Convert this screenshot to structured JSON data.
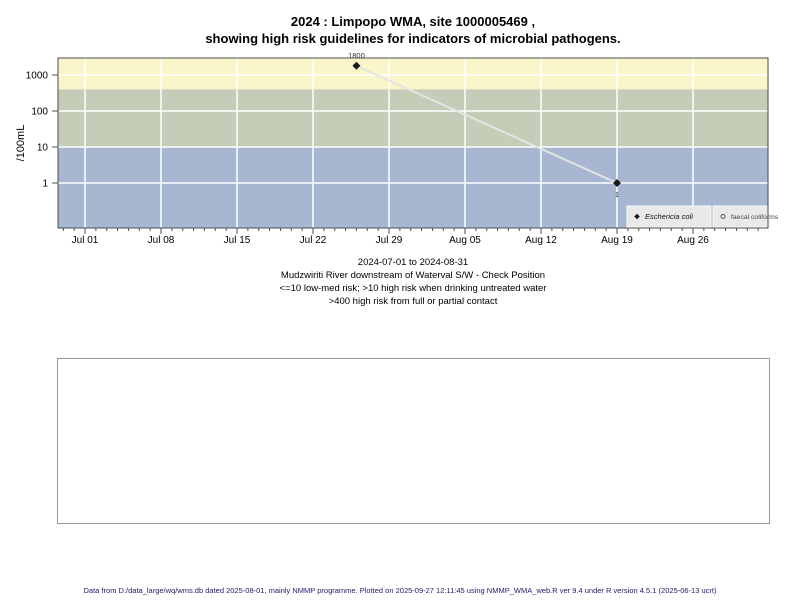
{
  "title": {
    "line1": "2024 : Limpopo WMA, site 1000005469 ,",
    "line2": "showing high risk guidelines for indicators of microbial pathogens."
  },
  "subtitle": {
    "line1": "2024-07-01 to 2024-08-31",
    "line2": "Mudzwiriti River downstream of Waterval S/W - Check Position",
    "line3": "<=10 low-med risk; >10 high risk when drinking untreated water",
    "line4": ">400 high risk from full or partial contact"
  },
  "footer": {
    "text": "Data from D:/data_large/wq/wms.db dated 2025-08-01, mainly NMMP programme. Plotted on 2025-09-27 12:11:45 using NMMP_WMA_web.R ver 9.4 under R version 4.5.1 (2025-06-13 ucrt)"
  },
  "chart_data": {
    "type": "line",
    "title": "2024 : Limpopo WMA, site 1000005469 , showing high risk guidelines for indicators of microbial pathogens.",
    "ylabel": "/100mL",
    "xlabel": "",
    "y_scale": "log10",
    "y_ticks": [
      1,
      10,
      100,
      1000
    ],
    "ylim": [
      0.056,
      3000
    ],
    "x_range": [
      "2024-07-01",
      "2024-08-31"
    ],
    "x_tick_labels": [
      "Jul 01",
      "Jul 08",
      "Jul 15",
      "Jul 22",
      "Jul 29",
      "Aug 05",
      "Aug 12",
      "Aug 19",
      "Aug 26"
    ],
    "x_minor_tick_unit": "day",
    "grid": true,
    "grid_color": "#ffffff",
    "risk_bands": [
      {
        "label": ">400 high risk from full or partial contact",
        "from": 400,
        "to": 3000,
        "color": "#faf6c9"
      },
      {
        "label": ">10 high risk when drinking untreated water",
        "from": 10,
        "to": 400,
        "color": "#c5cdb8"
      },
      {
        "label": "<=10 low-med risk",
        "from": 0.056,
        "to": 10,
        "color": "#a7b6d1"
      }
    ],
    "series": [
      {
        "name": "Eschericia coli",
        "marker": "filled-diamond",
        "marker_color": "#1a1a1a",
        "line_color": "#e4e4e4",
        "points": [
          {
            "date": "2024-07-26",
            "value": 1800,
            "label": "1800",
            "label_position": "above"
          },
          {
            "date": "2024-08-19",
            "value": 1,
            "label": "1",
            "label_position": "below"
          }
        ]
      },
      {
        "name": "faecal coliforms",
        "marker": "open-circle",
        "marker_color": "#555555",
        "points": []
      }
    ],
    "legend": {
      "position": "bottom-right-inside",
      "background": "#e9e9e9",
      "items": [
        {
          "marker": "filled-diamond",
          "label": "Eschericia coli",
          "italic": true
        },
        {
          "marker": "open-circle",
          "label": "faecal coliforms",
          "italic": false
        }
      ]
    }
  }
}
